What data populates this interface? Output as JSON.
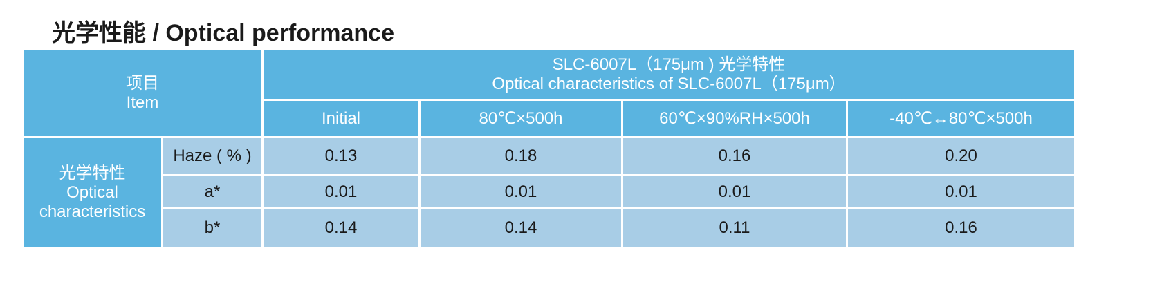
{
  "title": "光学性能 / Optical performance",
  "table": {
    "item_header": [
      "项目",
      "Item"
    ],
    "product_header": [
      "SLC-6007L（175μm ) 光学特性",
      "Optical characteristics of SLC-6007L（175μm）"
    ],
    "conditions": [
      "Initial",
      "80℃×500h",
      "60℃×90%RH×500h",
      "-40℃↔80℃×500h"
    ],
    "group": [
      "光学特性",
      "Optical",
      "characteristics"
    ],
    "rows": [
      {
        "label": "Haze ( % )",
        "values": [
          "0.13",
          "0.18",
          "0.16",
          "0.20"
        ]
      },
      {
        "label": "a*",
        "values": [
          "0.01",
          "0.01",
          "0.01",
          "0.01"
        ]
      },
      {
        "label": "b*",
        "values": [
          "0.14",
          "0.14",
          "0.11",
          "0.16"
        ]
      }
    ]
  }
}
